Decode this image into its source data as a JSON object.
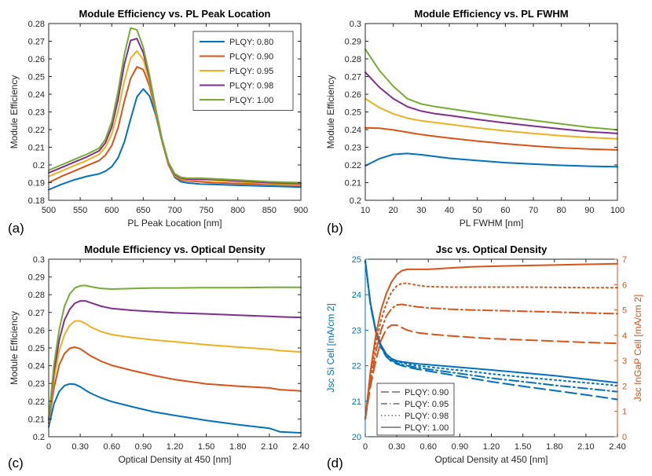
{
  "colors": {
    "PLQY: 0.80": "#0072BD",
    "PLQY: 0.90": "#D95319",
    "PLQY: 0.95": "#EDB120",
    "PLQY: 0.98": "#7E2F8E",
    "PLQY: 1.00": "#77AC30",
    "si": "#0072BD",
    "ingap": "#D95319"
  },
  "chart_data": [
    {
      "id": "a",
      "panel_label": "(a)",
      "type": "line",
      "title": "Module Efficiency vs. PL Peak Location",
      "xlabel": "PL Peak Location [nm]",
      "ylabel": "Module Efficiency",
      "xlim": [
        500,
        900
      ],
      "ylim": [
        0.18,
        0.28
      ],
      "xticks": [
        500,
        550,
        600,
        650,
        700,
        750,
        800,
        850,
        900
      ],
      "xtick_labels": [
        "500",
        "550",
        "600",
        "650",
        "700",
        "750",
        "800",
        "850",
        "900"
      ],
      "yticks": [
        0.18,
        0.19,
        0.2,
        0.21,
        0.22,
        0.23,
        0.24,
        0.25,
        0.26,
        0.27,
        0.28
      ],
      "ytick_labels": [
        "0.18",
        "0.19",
        "0.2",
        "0.21",
        "0.22",
        "0.23",
        "0.24",
        "0.25",
        "0.26",
        "0.27",
        "0.28"
      ],
      "legend": "top-right",
      "x": [
        500,
        520,
        540,
        560,
        580,
        590,
        600,
        610,
        620,
        630,
        640,
        650,
        660,
        670,
        680,
        690,
        700,
        710,
        720,
        740,
        760,
        800,
        850,
        900
      ],
      "series": [
        {
          "name": "PLQY: 0.80",
          "values": [
            0.186,
            0.189,
            0.1915,
            0.1935,
            0.195,
            0.1965,
            0.199,
            0.204,
            0.213,
            0.226,
            0.2385,
            0.243,
            0.239,
            0.228,
            0.213,
            0.2,
            0.193,
            0.1905,
            0.1898,
            0.1892,
            0.189,
            0.1885,
            0.188,
            0.1875
          ]
        },
        {
          "name": "PLQY: 0.90",
          "values": [
            0.19,
            0.1935,
            0.1965,
            0.1995,
            0.2025,
            0.2055,
            0.211,
            0.221,
            0.236,
            0.249,
            0.2555,
            0.254,
            0.2445,
            0.229,
            0.213,
            0.2,
            0.1935,
            0.1915,
            0.191,
            0.1905,
            0.19,
            0.1895,
            0.189,
            0.1885
          ]
        },
        {
          "name": "PLQY: 0.95",
          "values": [
            0.1935,
            0.1965,
            0.1995,
            0.2025,
            0.206,
            0.21,
            0.2175,
            0.2305,
            0.2475,
            0.2605,
            0.2645,
            0.2595,
            0.247,
            0.23,
            0.2135,
            0.2005,
            0.194,
            0.192,
            0.1915,
            0.1915,
            0.1912,
            0.1905,
            0.1895,
            0.189
          ]
        },
        {
          "name": "PLQY: 0.98",
          "values": [
            0.1955,
            0.1985,
            0.2015,
            0.2045,
            0.208,
            0.2125,
            0.2215,
            0.237,
            0.257,
            0.2705,
            0.2715,
            0.2635,
            0.249,
            0.231,
            0.214,
            0.201,
            0.1945,
            0.1925,
            0.192,
            0.192,
            0.1918,
            0.191,
            0.19,
            0.1895
          ]
        },
        {
          "name": "PLQY: 1.00",
          "values": [
            0.197,
            0.2,
            0.203,
            0.206,
            0.2095,
            0.2145,
            0.2245,
            0.2415,
            0.2625,
            0.2775,
            0.2765,
            0.2665,
            0.2505,
            0.2315,
            0.2145,
            0.2015,
            0.195,
            0.193,
            0.1925,
            0.1925,
            0.1922,
            0.1915,
            0.1905,
            0.19
          ]
        }
      ]
    },
    {
      "id": "b",
      "panel_label": "(b)",
      "type": "line",
      "title": "Module Efficiency vs. PL FWHM",
      "xlabel": "PL FWHM [nm]",
      "ylabel": "Module Efficiency",
      "xlim": [
        10,
        100
      ],
      "ylim": [
        0.2,
        0.3
      ],
      "xticks": [
        10,
        20,
        30,
        40,
        50,
        60,
        70,
        80,
        90,
        100
      ],
      "xtick_labels": [
        "10",
        "20",
        "30",
        "40",
        "50",
        "60",
        "70",
        "80",
        "90",
        "100"
      ],
      "yticks": [
        0.2,
        0.21,
        0.22,
        0.23,
        0.24,
        0.25,
        0.26,
        0.27,
        0.28,
        0.29,
        0.3
      ],
      "ytick_labels": [
        "0.2",
        "0.21",
        "0.22",
        "0.23",
        "0.24",
        "0.25",
        "0.26",
        "0.27",
        "0.28",
        "0.29",
        "0.3"
      ],
      "x": [
        10,
        15,
        20,
        25,
        30,
        35,
        40,
        50,
        60,
        70,
        80,
        90,
        100
      ],
      "series": [
        {
          "name": "PLQY: 0.80",
          "values": [
            0.2195,
            0.2235,
            0.226,
            0.2265,
            0.2258,
            0.2248,
            0.2238,
            0.2225,
            0.2213,
            0.2205,
            0.2198,
            0.2193,
            0.219
          ]
        },
        {
          "name": "PLQY: 0.90",
          "values": [
            0.241,
            0.2408,
            0.2398,
            0.2385,
            0.2372,
            0.2362,
            0.2352,
            0.2335,
            0.232,
            0.2307,
            0.2297,
            0.229,
            0.2285
          ]
        },
        {
          "name": "PLQY: 0.95",
          "values": [
            0.2575,
            0.2525,
            0.249,
            0.2465,
            0.245,
            0.244,
            0.243,
            0.241,
            0.2393,
            0.2378,
            0.2365,
            0.2355,
            0.2348
          ]
        },
        {
          "name": "PLQY: 0.98",
          "values": [
            0.2725,
            0.264,
            0.2575,
            0.253,
            0.2505,
            0.249,
            0.248,
            0.2458,
            0.2438,
            0.242,
            0.2403,
            0.2388,
            0.2378
          ]
        },
        {
          "name": "PLQY: 1.00",
          "values": [
            0.2855,
            0.2735,
            0.2645,
            0.2575,
            0.2545,
            0.253,
            0.2518,
            0.2495,
            0.2473,
            0.2452,
            0.2432,
            0.2413,
            0.2398
          ]
        }
      ]
    },
    {
      "id": "c",
      "panel_label": "(c)",
      "type": "line",
      "title": "Module Efficiency vs. Optical Density",
      "xlabel": "Optical Density at 450 [nm]",
      "ylabel": "Module Efficiency",
      "xlim": [
        0,
        2.4
      ],
      "ylim": [
        0.2,
        0.3
      ],
      "xticks": [
        0,
        0.3,
        0.6,
        0.9,
        1.2,
        1.5,
        1.8,
        2.1,
        2.4
      ],
      "xtick_labels": [
        "0",
        "0.30",
        "0.60",
        "0.90",
        "1.20",
        "1.50",
        "1.80",
        "2.10",
        "2.40"
      ],
      "yticks": [
        0.2,
        0.21,
        0.22,
        0.23,
        0.24,
        0.25,
        0.26,
        0.27,
        0.28,
        0.29,
        0.3
      ],
      "ytick_labels": [
        "0.2",
        "0.21",
        "0.22",
        "0.23",
        "0.24",
        "0.25",
        "0.26",
        "0.27",
        "0.28",
        "0.29",
        "0.3"
      ],
      "x": [
        0,
        0.05,
        0.1,
        0.15,
        0.2,
        0.25,
        0.3,
        0.35,
        0.4,
        0.5,
        0.6,
        0.8,
        1.0,
        1.2,
        1.5,
        1.8,
        2.1,
        2.2,
        2.4
      ],
      "series": [
        {
          "name": "PLQY: 0.80",
          "values": [
            0.2055,
            0.2185,
            0.2255,
            0.2288,
            0.2298,
            0.2295,
            0.2282,
            0.2262,
            0.2245,
            0.2218,
            0.2198,
            0.2168,
            0.214,
            0.212,
            0.2092,
            0.2068,
            0.2048,
            0.2028,
            0.2022
          ]
        },
        {
          "name": "PLQY: 0.90",
          "values": [
            0.2075,
            0.2275,
            0.2405,
            0.2468,
            0.2498,
            0.2505,
            0.2495,
            0.2475,
            0.2455,
            0.2425,
            0.2402,
            0.2372,
            0.2345,
            0.2322,
            0.2298,
            0.2285,
            0.2275,
            0.2265,
            0.2258
          ]
        },
        {
          "name": "PLQY: 0.95",
          "values": [
            0.2085,
            0.2325,
            0.2485,
            0.2575,
            0.2628,
            0.2652,
            0.2652,
            0.2638,
            0.2618,
            0.2592,
            0.2575,
            0.2558,
            0.2545,
            0.2535,
            0.2518,
            0.2505,
            0.2492,
            0.2485,
            0.2478
          ]
        },
        {
          "name": "PLQY: 0.98",
          "values": [
            0.2095,
            0.2365,
            0.2545,
            0.2658,
            0.2718,
            0.2752,
            0.2765,
            0.2765,
            0.2755,
            0.2735,
            0.2722,
            0.2712,
            0.2705,
            0.2698,
            0.2692,
            0.2685,
            0.2678,
            0.2675,
            0.2672
          ]
        },
        {
          "name": "PLQY: 1.00",
          "values": [
            0.21,
            0.2405,
            0.2605,
            0.2735,
            0.2805,
            0.2838,
            0.285,
            0.2852,
            0.2845,
            0.2835,
            0.2832,
            0.2835,
            0.2838,
            0.2838,
            0.284,
            0.284,
            0.2842,
            0.2842,
            0.2842
          ]
        }
      ]
    },
    {
      "id": "d",
      "panel_label": "(d)",
      "type": "line",
      "title": "Jsc vs. Optical Density",
      "xlabel": "Optical Density at 450 [nm]",
      "ylabel": "Jsc Si Cell [mA/cm 2]",
      "ylabel_right": "Jsc InGaP Cell [mA/cm 2]",
      "xlim": [
        0,
        2.4
      ],
      "ylim": [
        20,
        25
      ],
      "ylim_right": [
        0,
        7
      ],
      "xticks": [
        0,
        0.3,
        0.6,
        0.9,
        1.2,
        1.5,
        1.8,
        2.1,
        2.4
      ],
      "xtick_labels": [
        "0",
        "0.30",
        "0.60",
        "0.90",
        "1.20",
        "1.50",
        "1.80",
        "2.10",
        "2.40"
      ],
      "yticks": [
        20,
        21,
        22,
        23,
        24,
        25
      ],
      "ytick_labels": [
        "20",
        "21",
        "22",
        "23",
        "24",
        "25"
      ],
      "yticks_right": [
        0,
        1,
        2,
        3,
        4,
        5,
        6,
        7
      ],
      "ytick_labels_right": [
        "0",
        "1",
        "2",
        "3",
        "4",
        "5",
        "6",
        "7"
      ],
      "legend": "bottom-left",
      "x": [
        0,
        0.05,
        0.1,
        0.15,
        0.2,
        0.25,
        0.3,
        0.35,
        0.4,
        0.5,
        0.6,
        0.8,
        1.0,
        1.2,
        1.5,
        1.8,
        2.1,
        2.4
      ],
      "series": [
        {
          "name": "PLQY: 0.90",
          "dash": "long",
          "axis": "left",
          "values": [
            24.95,
            23.7,
            22.95,
            22.5,
            22.25,
            22.12,
            22.05,
            22.0,
            21.96,
            21.9,
            21.85,
            21.75,
            21.65,
            21.55,
            21.42,
            21.3,
            21.18,
            21.05
          ]
        },
        {
          "name": "PLQY: 0.95",
          "dash": "dashdot",
          "axis": "left",
          "values": [
            24.95,
            23.7,
            22.95,
            22.52,
            22.28,
            22.15,
            22.08,
            22.03,
            22.0,
            21.95,
            21.9,
            21.82,
            21.74,
            21.65,
            21.55,
            21.45,
            21.36,
            21.27
          ]
        },
        {
          "name": "PLQY: 0.98",
          "dash": "dotted",
          "axis": "left",
          "values": [
            24.95,
            23.72,
            22.97,
            22.55,
            22.3,
            22.18,
            22.12,
            22.08,
            22.05,
            22.0,
            21.97,
            21.9,
            21.84,
            21.77,
            21.68,
            21.6,
            21.52,
            21.44
          ]
        },
        {
          "name": "PLQY: 1.00",
          "dash": "solid",
          "axis": "left",
          "values": [
            24.95,
            23.75,
            23.0,
            22.58,
            22.33,
            22.2,
            22.14,
            22.11,
            22.09,
            22.05,
            22.03,
            21.98,
            21.93,
            21.88,
            21.8,
            21.72,
            21.62,
            21.52
          ]
        },
        {
          "name": "PLQY: 0.90",
          "dash": "long",
          "axis": "right",
          "values": [
            0.7,
            2.0,
            3.0,
            3.8,
            4.25,
            4.4,
            4.4,
            4.3,
            4.2,
            4.1,
            4.05,
            3.98,
            3.92,
            3.87,
            3.82,
            3.77,
            3.72,
            3.68
          ]
        },
        {
          "name": "PLQY: 0.95",
          "dash": "dashdot",
          "axis": "right",
          "values": [
            0.7,
            2.2,
            3.35,
            4.2,
            4.75,
            5.05,
            5.2,
            5.22,
            5.18,
            5.12,
            5.08,
            5.03,
            5.0,
            4.98,
            4.95,
            4.92,
            4.88,
            4.85
          ]
        },
        {
          "name": "PLQY: 0.98",
          "dash": "dotted",
          "axis": "right",
          "values": [
            0.7,
            2.4,
            3.7,
            4.6,
            5.25,
            5.7,
            5.95,
            6.05,
            6.05,
            5.97,
            5.92,
            5.9,
            5.9,
            5.9,
            5.9,
            5.89,
            5.88,
            5.88
          ]
        },
        {
          "name": "PLQY: 1.00",
          "dash": "solid",
          "axis": "right",
          "values": [
            0.7,
            2.6,
            4.0,
            5.0,
            5.65,
            6.1,
            6.4,
            6.55,
            6.6,
            6.6,
            6.6,
            6.65,
            6.7,
            6.72,
            6.75,
            6.77,
            6.8,
            6.82
          ]
        }
      ]
    }
  ]
}
